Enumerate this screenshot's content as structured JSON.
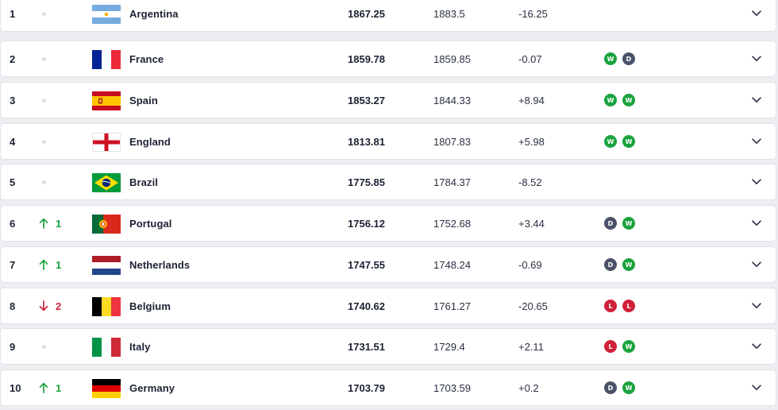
{
  "table": {
    "rows": [
      {
        "rank": "1",
        "move_dir": "same",
        "move_text": "",
        "team": "Argentina",
        "flag": "argentina",
        "points": "1867.25",
        "previous": "1883.5",
        "diff": "-16.25",
        "form": []
      },
      {
        "rank": "2",
        "move_dir": "same",
        "move_text": "",
        "team": "France",
        "flag": "france",
        "points": "1859.78",
        "previous": "1859.85",
        "diff": "-0.07",
        "form": [
          "W",
          "D"
        ]
      },
      {
        "rank": "3",
        "move_dir": "same",
        "move_text": "",
        "team": "Spain",
        "flag": "spain",
        "points": "1853.27",
        "previous": "1844.33",
        "diff": "+8.94",
        "form": [
          "W",
          "W"
        ]
      },
      {
        "rank": "4",
        "move_dir": "same",
        "move_text": "",
        "team": "England",
        "flag": "england",
        "points": "1813.81",
        "previous": "1807.83",
        "diff": "+5.98",
        "form": [
          "W",
          "W"
        ]
      },
      {
        "rank": "5",
        "move_dir": "same",
        "move_text": "",
        "team": "Brazil",
        "flag": "brazil",
        "points": "1775.85",
        "previous": "1784.37",
        "diff": "-8.52",
        "form": []
      },
      {
        "rank": "6",
        "move_dir": "up",
        "move_text": "1",
        "team": "Portugal",
        "flag": "portugal",
        "points": "1756.12",
        "previous": "1752.68",
        "diff": "+3.44",
        "form": [
          "D",
          "W"
        ]
      },
      {
        "rank": "7",
        "move_dir": "up",
        "move_text": "1",
        "team": "Netherlands",
        "flag": "netherlands",
        "points": "1747.55",
        "previous": "1748.24",
        "diff": "-0.69",
        "form": [
          "D",
          "W"
        ]
      },
      {
        "rank": "8",
        "move_dir": "down",
        "move_text": "2",
        "team": "Belgium",
        "flag": "belgium",
        "points": "1740.62",
        "previous": "1761.27",
        "diff": "-20.65",
        "form": [
          "L",
          "L"
        ]
      },
      {
        "rank": "9",
        "move_dir": "same",
        "move_text": "",
        "team": "Italy",
        "flag": "italy",
        "points": "1731.51",
        "previous": "1729.4",
        "diff": "+2.11",
        "form": [
          "L",
          "W"
        ]
      },
      {
        "rank": "10",
        "move_dir": "up",
        "move_text": "1",
        "team": "Germany",
        "flag": "germany",
        "points": "1703.79",
        "previous": "1703.59",
        "diff": "+0.2",
        "form": [
          "D",
          "W"
        ]
      }
    ]
  },
  "colors": {
    "win": "#1aa33e",
    "draw": "#4b5168",
    "loss": "#d0203a",
    "move_up": "#1aa33e",
    "move_down": "#d0203a"
  },
  "icons": {
    "expand": "chevron-down-icon",
    "move_up": "arrow-up-icon",
    "move_down": "arrow-down-icon",
    "no_change": "dot-icon"
  }
}
